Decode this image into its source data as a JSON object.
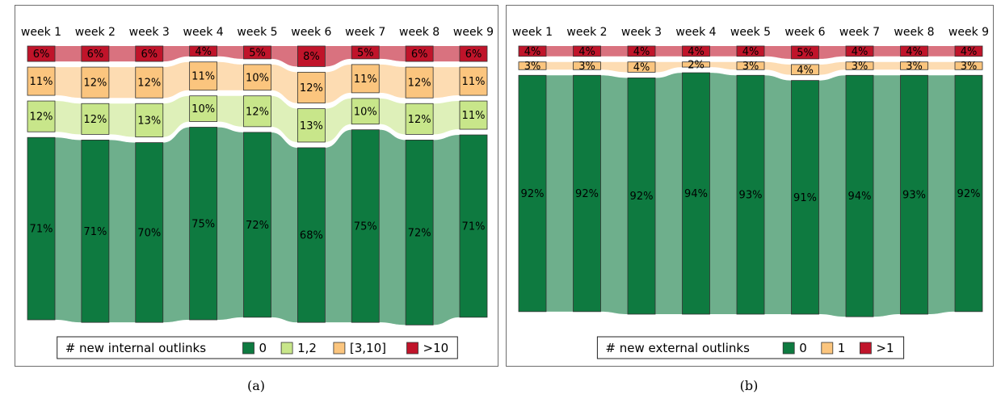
{
  "colors": {
    "0": "#0e7a40",
    "1,2": "#c8e68a",
    "[3,10]": "#fbc57e",
    ">10": "#c0142a",
    "1": "#fbc57e",
    ">1": "#c0142a"
  },
  "chart_data": [
    {
      "type": "sankey",
      "categories": [
        "week 1",
        "week 2",
        "week 3",
        "week 4",
        "week 5",
        "week 6",
        "week 7",
        "week 8",
        "week 9"
      ],
      "legend_title": "# new internal outlinks",
      "legend_position": "bottom",
      "series": [
        {
          "name": ">10",
          "values": [
            6,
            6,
            6,
            4,
            5,
            8,
            5,
            6,
            6
          ]
        },
        {
          "name": "[3,10]",
          "values": [
            11,
            12,
            12,
            11,
            10,
            12,
            11,
            12,
            11
          ]
        },
        {
          "name": "1,2",
          "values": [
            12,
            12,
            13,
            10,
            12,
            13,
            10,
            12,
            11
          ]
        },
        {
          "name": "0",
          "values": [
            71,
            71,
            70,
            75,
            72,
            68,
            75,
            72,
            71
          ]
        }
      ],
      "labels": [
        [
          "6%",
          "6%",
          "6%",
          "4%",
          "5%",
          "8%",
          "5%",
          "6%",
          "6%"
        ],
        [
          "11%",
          "12%",
          "12%",
          "11%",
          "10%",
          "12%",
          "11%",
          "12%",
          "11%"
        ],
        [
          "12%",
          "12%",
          "13%",
          "10%",
          "12%",
          "13%",
          "10%",
          "12%",
          "11%"
        ],
        [
          "71%",
          "71%",
          "70%",
          "75%",
          "72%",
          "68%",
          "75%",
          "72%",
          "71%"
        ]
      ],
      "legend": [
        "0",
        "1,2",
        "[3,10]",
        ">10"
      ],
      "caption": "(a)"
    },
    {
      "type": "sankey",
      "categories": [
        "week 1",
        "week 2",
        "week 3",
        "week 4",
        "week 5",
        "week 6",
        "week 7",
        "week 8",
        "week 9"
      ],
      "legend_title": "# new external outlinks",
      "legend_position": "bottom",
      "series": [
        {
          "name": ">1",
          "values": [
            4,
            4,
            4,
            4,
            4,
            5,
            4,
            4,
            4
          ]
        },
        {
          "name": "1",
          "values": [
            3,
            3,
            4,
            2,
            3,
            4,
            3,
            3,
            3
          ]
        },
        {
          "name": "0",
          "values": [
            92,
            92,
            92,
            94,
            93,
            91,
            94,
            93,
            92
          ]
        }
      ],
      "labels": [
        [
          "4%",
          "4%",
          "4%",
          "4%",
          "4%",
          "5%",
          "4%",
          "4%",
          "4%"
        ],
        [
          "3%",
          "3%",
          "4%",
          "2%",
          "3%",
          "4%",
          "3%",
          "3%",
          "3%"
        ],
        [
          "92%",
          "92%",
          "92%",
          "94%",
          "93%",
          "91%",
          "94%",
          "93%",
          "92%"
        ]
      ],
      "legend": [
        "0",
        "1",
        ">1"
      ],
      "caption": "(b)"
    }
  ]
}
